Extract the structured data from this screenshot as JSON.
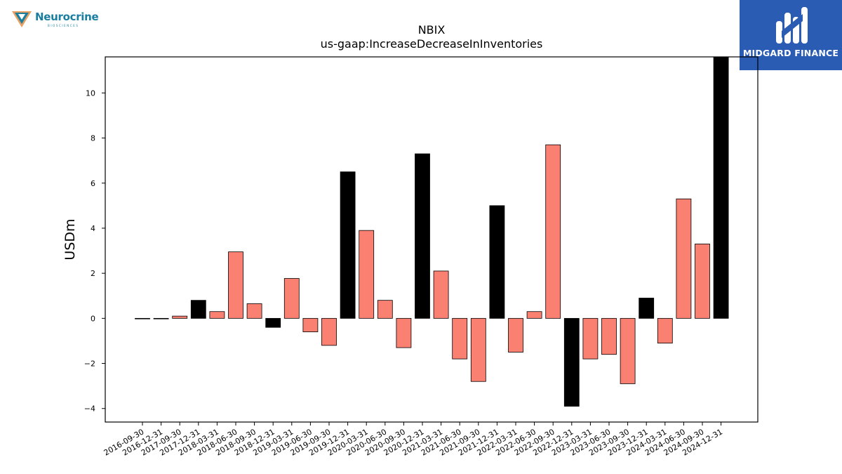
{
  "logos": {
    "left_text": "Neurocrine",
    "left_subtext": "BIOSCIENCES",
    "right_text": "MIDGARD FINANCE"
  },
  "colors": {
    "positive_bar": "#fa8072",
    "highlight_bar": "#000000",
    "brand_blue": "#2b5cb4",
    "left_logo": "#1a7ea0"
  },
  "chart_data": {
    "type": "bar",
    "title": "NBIX",
    "subtitle": "us-gaap:IncreaseDecreaseInInventories",
    "xlabel": "",
    "ylabel": "USDm",
    "ylim": [
      -4.6,
      11.6
    ],
    "yticks": [
      -4,
      -2,
      0,
      2,
      4,
      6,
      8,
      10
    ],
    "ytick_labels": [
      "−4",
      "−2",
      "0",
      "2",
      "4",
      "6",
      "8",
      "10"
    ],
    "grid": false,
    "legend": "none",
    "categories": [
      "2016-09-30",
      "2016-12-31",
      "2017-09-30",
      "2017-12-31",
      "2018-03-31",
      "2018-06-30",
      "2018-09-30",
      "2018-12-31",
      "2019-03-31",
      "2019-06-30",
      "2019-09-30",
      "2019-12-31",
      "2020-03-31",
      "2020-06-30",
      "2020-09-30",
      "2020-12-31",
      "2021-03-31",
      "2021-06-30",
      "2021-09-30",
      "2021-12-31",
      "2022-03-31",
      "2022-06-30",
      "2022-09-30",
      "2022-12-31",
      "2023-03-31",
      "2023-06-30",
      "2023-09-30",
      "2023-12-31",
      "2024-03-31",
      "2024-06-30",
      "2024-09-30",
      "2024-12-31"
    ],
    "values": [
      0.0,
      0.0,
      0.1,
      0.8,
      0.3,
      2.95,
      0.65,
      -0.4,
      1.77,
      -0.6,
      -1.2,
      6.5,
      3.9,
      0.8,
      -1.3,
      7.3,
      2.1,
      -1.8,
      -2.8,
      5.0,
      -1.5,
      0.3,
      7.7,
      -3.9,
      -1.8,
      -1.6,
      -2.9,
      0.9,
      -1.1,
      5.3,
      3.3,
      11.6
    ],
    "highlight": [
      false,
      false,
      false,
      true,
      false,
      false,
      false,
      true,
      false,
      false,
      false,
      true,
      false,
      false,
      false,
      true,
      false,
      false,
      false,
      true,
      false,
      false,
      false,
      true,
      false,
      false,
      false,
      true,
      false,
      false,
      false,
      true
    ]
  }
}
